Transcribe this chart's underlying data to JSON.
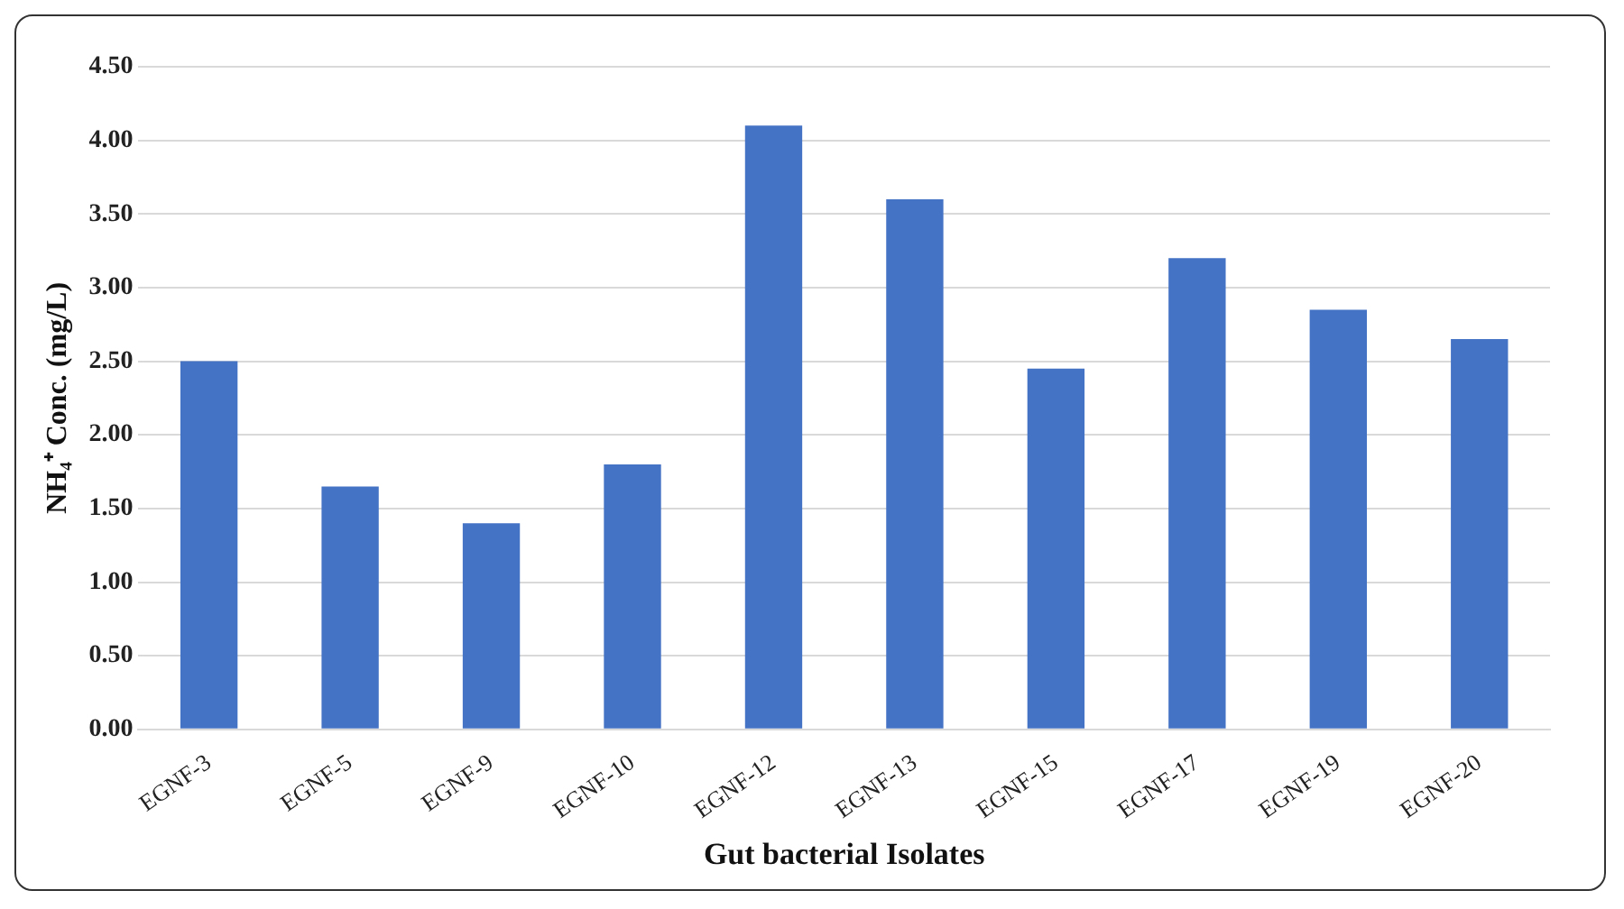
{
  "chart_data": {
    "type": "bar",
    "xlabel": "Gut bacterial Isolates",
    "ylabel": "NH₄⁺ Conc. (mg/L)",
    "categories": [
      "EGNF-3",
      "EGNF-5",
      "EGNF-9",
      "EGNF-10",
      "EGNF-12",
      "EGNF-13",
      "EGNF-15",
      "EGNF-17",
      "EGNF-19",
      "EGNF-20"
    ],
    "values": [
      2.5,
      1.65,
      1.4,
      1.8,
      4.1,
      3.6,
      2.45,
      3.2,
      2.85,
      2.65
    ],
    "color": "#4472c4",
    "ylim": [
      0,
      4.5
    ],
    "yticks": [
      {
        "value": 0,
        "label": "0.00"
      },
      {
        "value": 0.5,
        "label": "0.50"
      },
      {
        "value": 1,
        "label": "1.00"
      },
      {
        "value": 1.5,
        "label": "1.50"
      },
      {
        "value": 2,
        "label": "2.00"
      },
      {
        "value": 2.5,
        "label": "2.50"
      },
      {
        "value": 3,
        "label": "3.00"
      },
      {
        "value": 3.5,
        "label": "3.50"
      },
      {
        "value": 4,
        "label": "4.00"
      },
      {
        "value": 4.5,
        "label": "4.50"
      }
    ],
    "grid": "y",
    "legend": false
  }
}
